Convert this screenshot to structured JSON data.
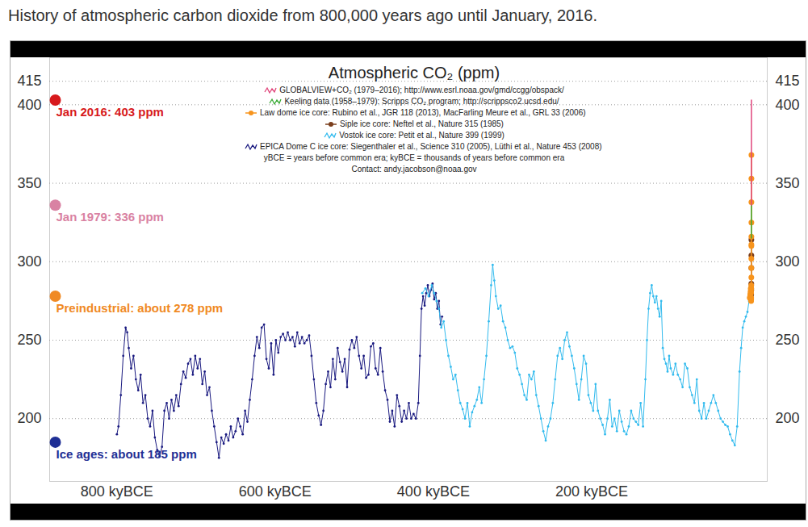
{
  "heading": "History of atmospheric carbon dioxide from 800,000 years ago until January, 2016.",
  "chart_data": {
    "type": "line",
    "title": "Atmospheric CO₂ (ppm)",
    "xlim": [
      885,
      -22
    ],
    "xticks": [
      {
        "value": 800,
        "label": "800 kyBCE"
      },
      {
        "value": 600,
        "label": "600 kyBCE"
      },
      {
        "value": 400,
        "label": "400 kyBCE"
      },
      {
        "value": 200,
        "label": "200 kyBCE"
      }
    ],
    "ylim": [
      160,
      430
    ],
    "yticks": [
      200,
      250,
      300,
      350,
      400,
      415
    ],
    "grid": true,
    "series": [
      {
        "name": "GLOBALVIEW+CO₂ (1979–2016); http://www.esrl.noaa.gov/gmd/ccgg/obspack/",
        "color": "#e0457b",
        "marker": "none",
        "line_style": "solid",
        "x": [
          -1.979,
          -1.985,
          -1.99,
          -1.995,
          -2.0,
          -2.005,
          -2.01,
          -2.013,
          -2.016
        ],
        "values": [
          336,
          346,
          354,
          361,
          369,
          379,
          389,
          396,
          403
        ]
      },
      {
        "name": "Keeling data (1958–1979): Scripps CO₂ program; http://scrippsco2.ucsd.edu/",
        "color": "#3aaa35",
        "marker": "none",
        "line_style": "solid",
        "x": [
          -1.958,
          -1.965,
          -1.97,
          -1.975,
          -1.979
        ],
        "values": [
          315,
          320,
          325,
          331,
          336
        ]
      },
      {
        "name": "Law dome ice core: Rubino et al., JGR 118 (2013), MacFarling Meure et al., GRL 33 (2006)",
        "color": "#f7941d",
        "marker": "circle",
        "line_style": "solid",
        "x": [
          -0.001,
          -0.2,
          -0.4,
          -0.6,
          -0.8,
          -1.0,
          -1.1,
          -1.2,
          -1.3,
          -1.4,
          -1.5,
          -1.6,
          -1.7,
          -1.75,
          -1.8,
          -1.85,
          -1.88,
          -1.9,
          -1.92,
          -1.94,
          -1.95,
          -1.96,
          -1.97,
          -1.98,
          -1.99,
          -2.0
        ],
        "values": [
          277,
          277,
          278,
          279,
          278,
          280,
          281,
          283,
          282,
          281,
          280,
          275,
          276,
          277,
          283,
          285,
          290,
          296,
          302,
          310,
          311,
          316,
          325,
          338,
          353,
          368
        ]
      },
      {
        "name": "Siple ice core: Neftel et al., Nature 315 (1985)",
        "color": "#7b3f1d",
        "marker": "circle",
        "line_style": "solid",
        "x": [
          -1.744,
          -1.8,
          -1.85,
          -1.9,
          -1.925,
          -1.953
        ],
        "values": [
          279,
          282,
          286,
          296,
          304,
          314
        ]
      },
      {
        "name": "Vostok ice core: Petit et al., Nature 399 (1999)",
        "color": "#33bbee",
        "marker": "dot",
        "line_style": "solid",
        "x": [
          414,
          410,
          406,
          402,
          399,
          396,
          393,
          390,
          387,
          384,
          381,
          378,
          375,
          372,
          369,
          366,
          363,
          360,
          357,
          354,
          351,
          348,
          345,
          342,
          339,
          336,
          333,
          330,
          327,
          325,
          323,
          321,
          318,
          315,
          312,
          309,
          306,
          303,
          300,
          297,
          294,
          291,
          288,
          285,
          282,
          279,
          276,
          273,
          270,
          267,
          264,
          261,
          258,
          255,
          252,
          249,
          246,
          243,
          240,
          237,
          234,
          231,
          228,
          225,
          222,
          219,
          216,
          213,
          210,
          207,
          204,
          201,
          198,
          195,
          192,
          189,
          186,
          183,
          180,
          177,
          174,
          171,
          168,
          165,
          162,
          159,
          156,
          153,
          150,
          147,
          144,
          141,
          138,
          135,
          132,
          130,
          128,
          126,
          124,
          122,
          120,
          118,
          116,
          114,
          112,
          110,
          108,
          106,
          104,
          102,
          100,
          97,
          94,
          91,
          88,
          85,
          82,
          79,
          76,
          73,
          70,
          67,
          64,
          61,
          58,
          55,
          52,
          49,
          46,
          43,
          40,
          37,
          34,
          31,
          28,
          25,
          22,
          19,
          16,
          13,
          11,
          9,
          7,
          5,
          3,
          1
        ],
        "values": [
          280,
          283,
          278,
          285,
          280,
          275,
          270,
          258,
          262,
          250,
          240,
          233,
          225,
          228,
          218,
          210,
          206,
          200,
          210,
          195,
          204,
          208,
          212,
          220,
          210,
          225,
          240,
          262,
          285,
          298,
          288,
          278,
          270,
          272,
          262,
          258,
          250,
          245,
          246,
          242,
          232,
          228,
          222,
          215,
          212,
          228,
          225,
          230,
          215,
          208,
          200,
          192,
          186,
          195,
          200,
          210,
          225,
          240,
          245,
          238,
          250,
          255,
          246,
          240,
          232,
          222,
          212,
          225,
          240,
          235,
          215,
          210,
          205,
          222,
          205,
          200,
          196,
          190,
          200,
          212,
          195,
          200,
          192,
          205,
          198,
          192,
          190,
          195,
          205,
          200,
          198,
          196,
          210,
          195,
          225,
          250,
          270,
          280,
          285,
          278,
          274,
          278,
          270,
          265,
          275,
          245,
          238,
          235,
          230,
          240,
          232,
          228,
          235,
          228,
          225,
          220,
          235,
          232,
          220,
          215,
          210,
          225,
          205,
          200,
          210,
          200,
          205,
          210,
          215,
          210,
          205,
          200,
          198,
          196,
          195,
          190,
          186,
          183,
          195,
          230,
          245,
          258,
          262,
          265,
          268,
          275
        ]
      },
      {
        "name": "EPICA Dome C ice core: Siegenthaler et al., Science 310 (2005), Lüthi et al., Nature 453 (2008)",
        "color": "#1a1a80",
        "marker": "dot",
        "line_style": "solid",
        "x": [
          800,
          798,
          795,
          792,
          789,
          787,
          785,
          782,
          779,
          776,
          773,
          770,
          767,
          764,
          761,
          758,
          755,
          752,
          749,
          746,
          743,
          740,
          737,
          734,
          731,
          728,
          725,
          722,
          719,
          716,
          713,
          710,
          707,
          704,
          701,
          698,
          695,
          692,
          689,
          686,
          683,
          680,
          677,
          674,
          671,
          668,
          665,
          662,
          659,
          656,
          653,
          650,
          647,
          644,
          641,
          638,
          635,
          632,
          629,
          626,
          623,
          620,
          617,
          614,
          611,
          608,
          605,
          602,
          599,
          596,
          593,
          590,
          587,
          584,
          581,
          578,
          575,
          572,
          569,
          566,
          563,
          560,
          557,
          554,
          551,
          548,
          545,
          542,
          539,
          536,
          533,
          530,
          527,
          524,
          521,
          518,
          515,
          512,
          509,
          506,
          503,
          500,
          497,
          494,
          491,
          488,
          485,
          482,
          479,
          476,
          473,
          470,
          467,
          464,
          461,
          458,
          455,
          452,
          449,
          446,
          443,
          440,
          437,
          434,
          431,
          428,
          425,
          422,
          419,
          417,
          415,
          413,
          411,
          409,
          407,
          405,
          403,
          401,
          399,
          397,
          395,
          393,
          391,
          389
        ],
        "values": [
          190,
          195,
          215,
          240,
          258,
          255,
          245,
          232,
          240,
          225,
          218,
          228,
          210,
          215,
          200,
          195,
          205,
          188,
          180,
          176,
          182,
          205,
          210,
          200,
          212,
          205,
          215,
          208,
          222,
          230,
          226,
          235,
          238,
          228,
          240,
          232,
          238,
          222,
          230,
          215,
          220,
          205,
          195,
          185,
          175,
          188,
          184,
          190,
          186,
          195,
          188,
          192,
          200,
          195,
          190,
          205,
          198,
          212,
          225,
          240,
          252,
          245,
          258,
          260,
          238,
          232,
          248,
          228,
          250,
          242,
          252,
          254,
          250,
          255,
          250,
          252,
          246,
          255,
          248,
          252,
          248,
          250,
          253,
          240,
          225,
          210,
          202,
          196,
          205,
          222,
          230,
          220,
          238,
          225,
          245,
          236,
          230,
          238,
          220,
          244,
          250,
          245,
          252,
          240,
          232,
          240,
          226,
          228,
          246,
          248,
          232,
          228,
          245,
          230,
          218,
          212,
          198,
          205,
          195,
          215,
          208,
          198,
          205,
          200,
          210,
          200,
          203,
          200,
          210,
          240,
          270,
          278,
          272,
          280,
          285,
          278,
          282,
          286,
          276,
          280,
          270,
          275,
          260,
          265
        ]
      }
    ],
    "annotations": [
      {
        "label": "Jan 2016: 403 ppm",
        "value": 403,
        "color": "#d7191c"
      },
      {
        "label": "Jan 1979: 336 ppm",
        "value": 336,
        "color": "#d982a3"
      },
      {
        "label": "Preindustrial: about 278 ppm",
        "value": 278,
        "color": "#f08a24"
      },
      {
        "label": "Ice ages: about 185 ppm",
        "value": 185,
        "color": "#1f2f95"
      }
    ],
    "notes": [
      "yBCE = years before common era; kyBCE = thousands of years before common era",
      "Contact: andy.jacobson@noaa.gov"
    ]
  }
}
